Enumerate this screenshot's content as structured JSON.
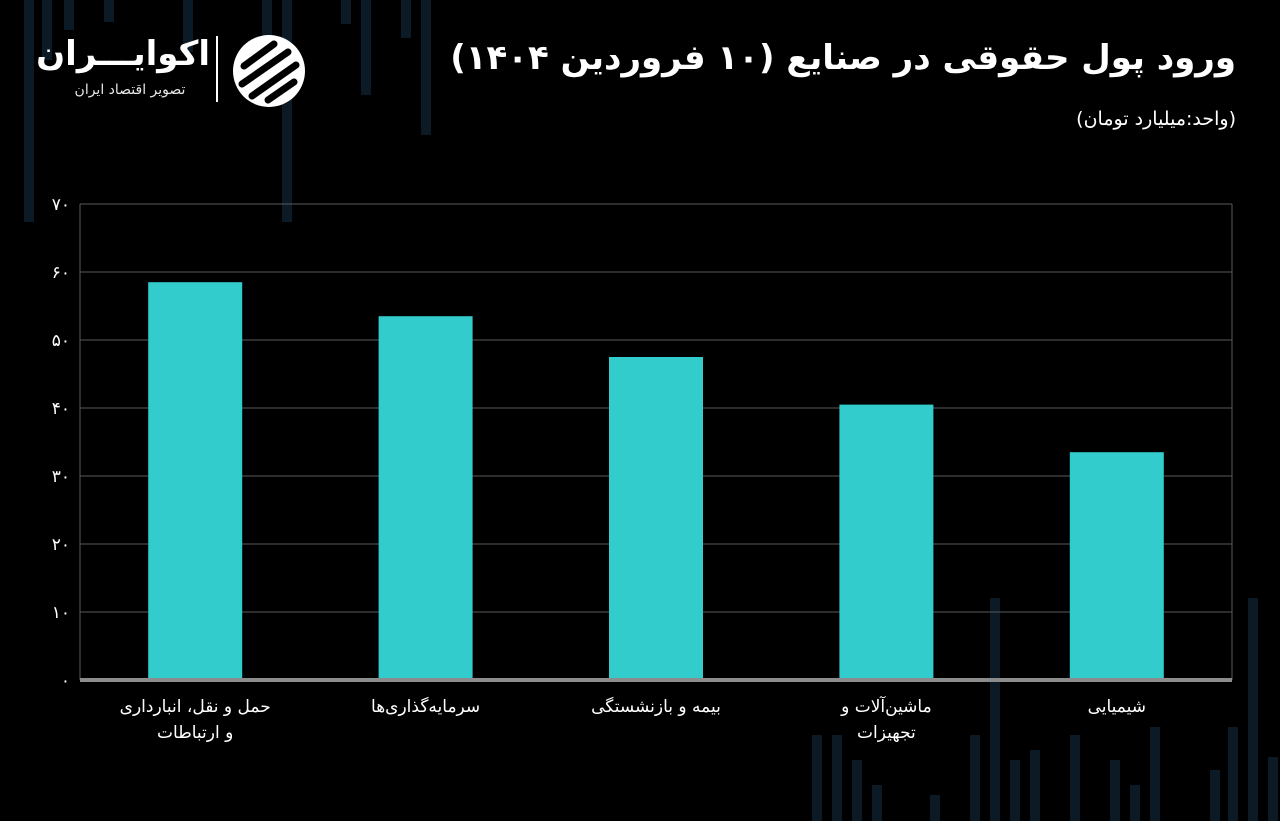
{
  "title": "ورود پول حقوقی در صنایع (۱۰ فروردین ۱۴۰۴)",
  "subtitle": "(واحد:میلیارد تومان)",
  "logo": {
    "name": "اکوایـــران",
    "tagline": "تصویر اقتصاد ایران",
    "icon": "ecoiran-logo-icon"
  },
  "colors": {
    "background": "#000000",
    "bar": "#33cccc",
    "grid": "#5a5a5a",
    "text": "#ffffff"
  },
  "chart_data": {
    "type": "bar",
    "categories": [
      [
        "حمل و نقل، انبارداری",
        "و ارتباطات"
      ],
      [
        "سرمایه‌گذاری‌ها"
      ],
      [
        "بیمه و بازنشستگی"
      ],
      [
        "ماشین‌آلات و",
        "تجهیزات"
      ],
      [
        "شیمیایی"
      ]
    ],
    "values": [
      58.5,
      53.5,
      47.5,
      40.5,
      33.5
    ],
    "ylim": [
      0,
      70
    ],
    "yticks": [
      0,
      10,
      20,
      30,
      40,
      50,
      60,
      70
    ],
    "ytick_labels": [
      "۰",
      "۱۰",
      "۲۰",
      "۳۰",
      "۴۰",
      "۵۰",
      "۶۰",
      "۷۰"
    ],
    "grid": true
  }
}
